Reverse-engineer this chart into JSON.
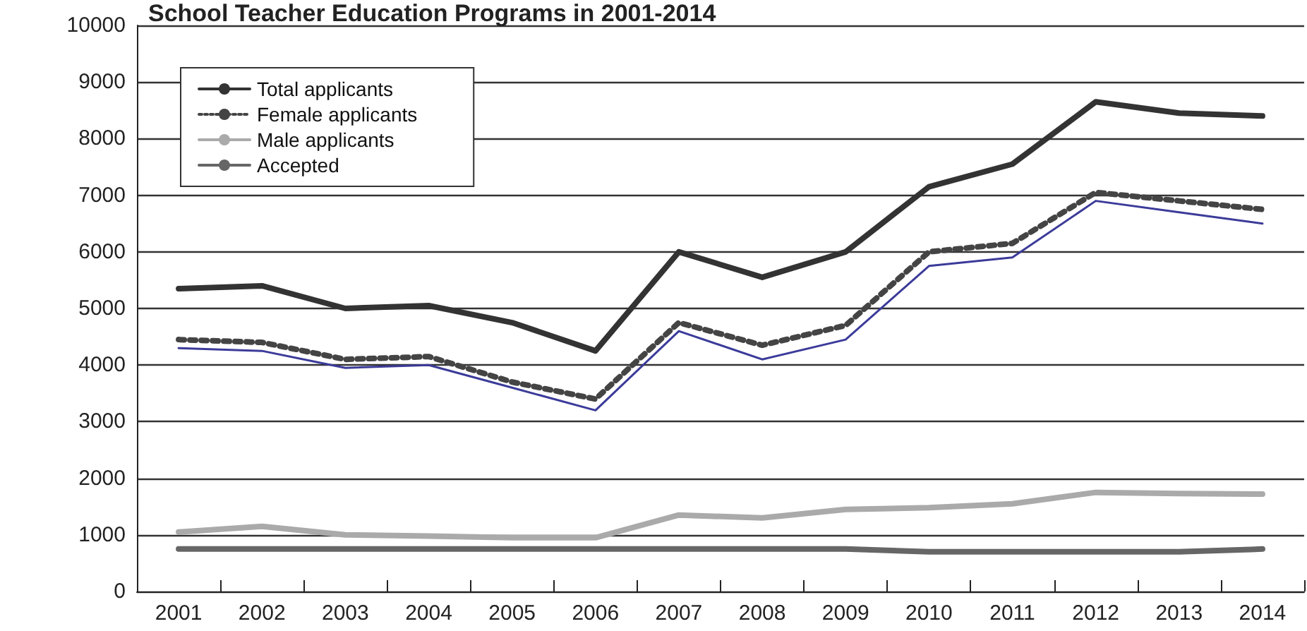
{
  "chart_data": {
    "type": "line",
    "title": "School Teacher Education Programs in 2001-2014",
    "categories": [
      "2001",
      "2002",
      "2003",
      "2004",
      "2005",
      "2006",
      "2007",
      "2008",
      "2009",
      "2010",
      "2011",
      "2012",
      "2013",
      "2014"
    ],
    "series": [
      {
        "name": "Total applicants",
        "color": "#333333",
        "line_style": "solid",
        "values": [
          5350,
          5400,
          5000,
          5050,
          4750,
          4250,
          6000,
          5550,
          6000,
          7150,
          7550,
          8650,
          8450,
          8400
        ]
      },
      {
        "name": "Female applicants",
        "color": "#444444",
        "line_style": "dotted",
        "values": [
          4450,
          4400,
          4100,
          4150,
          3700,
          3400,
          4750,
          4350,
          4700,
          6000,
          6150,
          7050,
          6900,
          6750
        ]
      },
      {
        "name": "Male applicants",
        "color": "#aaaaaa",
        "line_style": "solid",
        "values": [
          1050,
          1150,
          1000,
          980,
          950,
          950,
          1350,
          1300,
          1450,
          1480,
          1550,
          1750,
          1730,
          1720
        ]
      },
      {
        "name": "Accepted",
        "color": "#666666",
        "line_style": "solid",
        "values": [
          750,
          750,
          750,
          750,
          750,
          750,
          750,
          750,
          750,
          700,
          700,
          700,
          700,
          750
        ]
      },
      {
        "color": "#3b3b9a",
        "line_style": "solid",
        "values": [
          4300,
          4250,
          3950,
          4000,
          3600,
          3200,
          4600,
          4100,
          4450,
          5750,
          5900,
          6900,
          6700,
          6500
        ]
      }
    ],
    "ylim": [
      0,
      10000
    ],
    "yticks": [
      0,
      1000,
      2000,
      3000,
      4000,
      5000,
      6000,
      7000,
      8000,
      9000,
      10000
    ],
    "grid": "y",
    "legend": "top left",
    "marker": "none"
  }
}
